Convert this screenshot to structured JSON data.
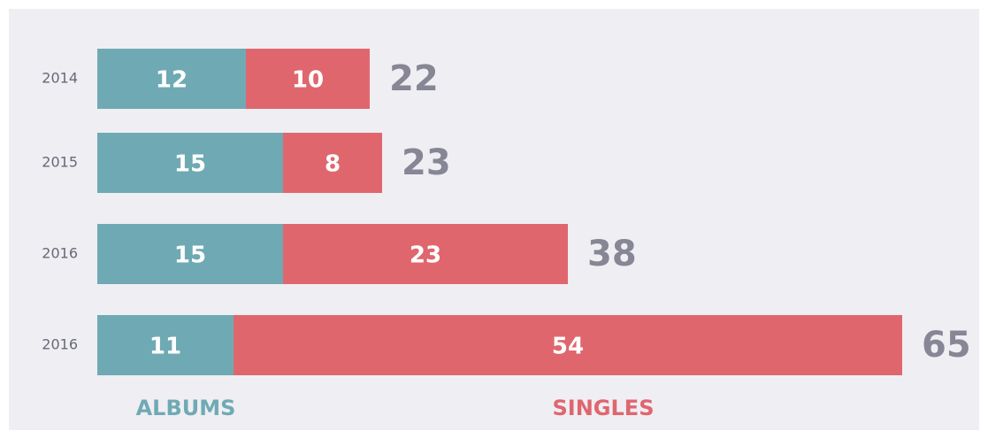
{
  "chart_data": {
    "type": "stacked-bar",
    "categories": [
      "2014",
      "2015",
      "2016",
      "2016"
    ],
    "series": [
      {
        "name": "ALBUMS",
        "color": "#6faab4",
        "values": [
          12,
          15,
          15,
          11
        ]
      },
      {
        "name": "SINGLES",
        "color": "#e0666e",
        "values": [
          10,
          8,
          23,
          54
        ]
      }
    ],
    "totals": [
      22,
      23,
      38,
      65
    ]
  }
}
